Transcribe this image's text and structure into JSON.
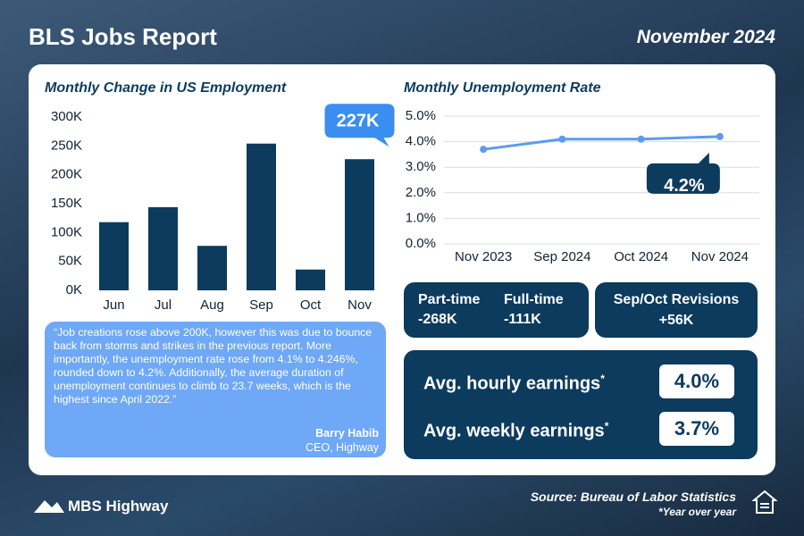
{
  "header": {
    "title": "BLS Jobs Report",
    "date": "November 2024"
  },
  "chart_data": [
    {
      "type": "bar",
      "title": "Monthly Change in US Employment",
      "categories": [
        "Jun",
        "Jul",
        "Aug",
        "Sep",
        "Oct",
        "Nov"
      ],
      "values": [
        118000,
        144000,
        77000,
        254000,
        36000,
        227000
      ],
      "value_labels": [
        null,
        null,
        null,
        null,
        null,
        "227K"
      ],
      "color": "#0c3b5e",
      "callout_color": "#3a8ef0",
      "ylim": [
        0,
        300000
      ],
      "yticks": [
        {
          "value": 0,
          "label": "0K"
        },
        {
          "value": 50000,
          "label": "50K"
        },
        {
          "value": 100000,
          "label": "100K"
        },
        {
          "value": 150000,
          "label": "150K"
        },
        {
          "value": 200000,
          "label": "200K"
        },
        {
          "value": 250000,
          "label": "250K"
        },
        {
          "value": 300000,
          "label": "300K"
        }
      ],
      "grid": false
    },
    {
      "type": "line",
      "title": "Monthly Unemployment Rate",
      "categories": [
        "Nov 2023",
        "Sep 2024",
        "Oct 2024",
        "Nov 2024"
      ],
      "values": [
        3.7,
        4.1,
        4.1,
        4.2
      ],
      "value_labels": [
        null,
        null,
        null,
        "4.2%"
      ],
      "color": "#5b9cf0",
      "callout_color": "#0c3b5e",
      "ylim": [
        0,
        5
      ],
      "yticks": [
        {
          "value": 0,
          "label": "0.0%"
        },
        {
          "value": 1,
          "label": "1.0%"
        },
        {
          "value": 2,
          "label": "2.0%"
        },
        {
          "value": 3,
          "label": "3.0%"
        },
        {
          "value": 4,
          "label": "4.0%"
        },
        {
          "value": 5,
          "label": "5.0%"
        }
      ],
      "grid": true
    }
  ],
  "quote": {
    "text": "“Job creations rose above 200K, however this was due to bounce back from storms and strikes in the previous report. More importantly, the unemployment rate rose from 4.1% to 4.246%, rounded down to 4.2%. Additionally, the average duration of unemployment continues to climb to 23.7 weeks, which is the highest since April 2022.”",
    "author": "Barry Habib",
    "role": "CEO, Highway"
  },
  "stats": [
    {
      "label": "Part-time",
      "value": "-268K"
    },
    {
      "label": "Full-time",
      "value": "-111K"
    },
    {
      "label": "Sep/Oct Revisions",
      "value": "+56K"
    }
  ],
  "earnings": [
    {
      "label": "Avg. hourly earnings",
      "mark": "*",
      "value": "4.0%"
    },
    {
      "label": "Avg. weekly earnings",
      "mark": "*",
      "value": "3.7%"
    }
  ],
  "footer": {
    "logo": "MBS Highway",
    "source": "Source: Bureau of Labor Statistics",
    "note": "*Year over year"
  }
}
